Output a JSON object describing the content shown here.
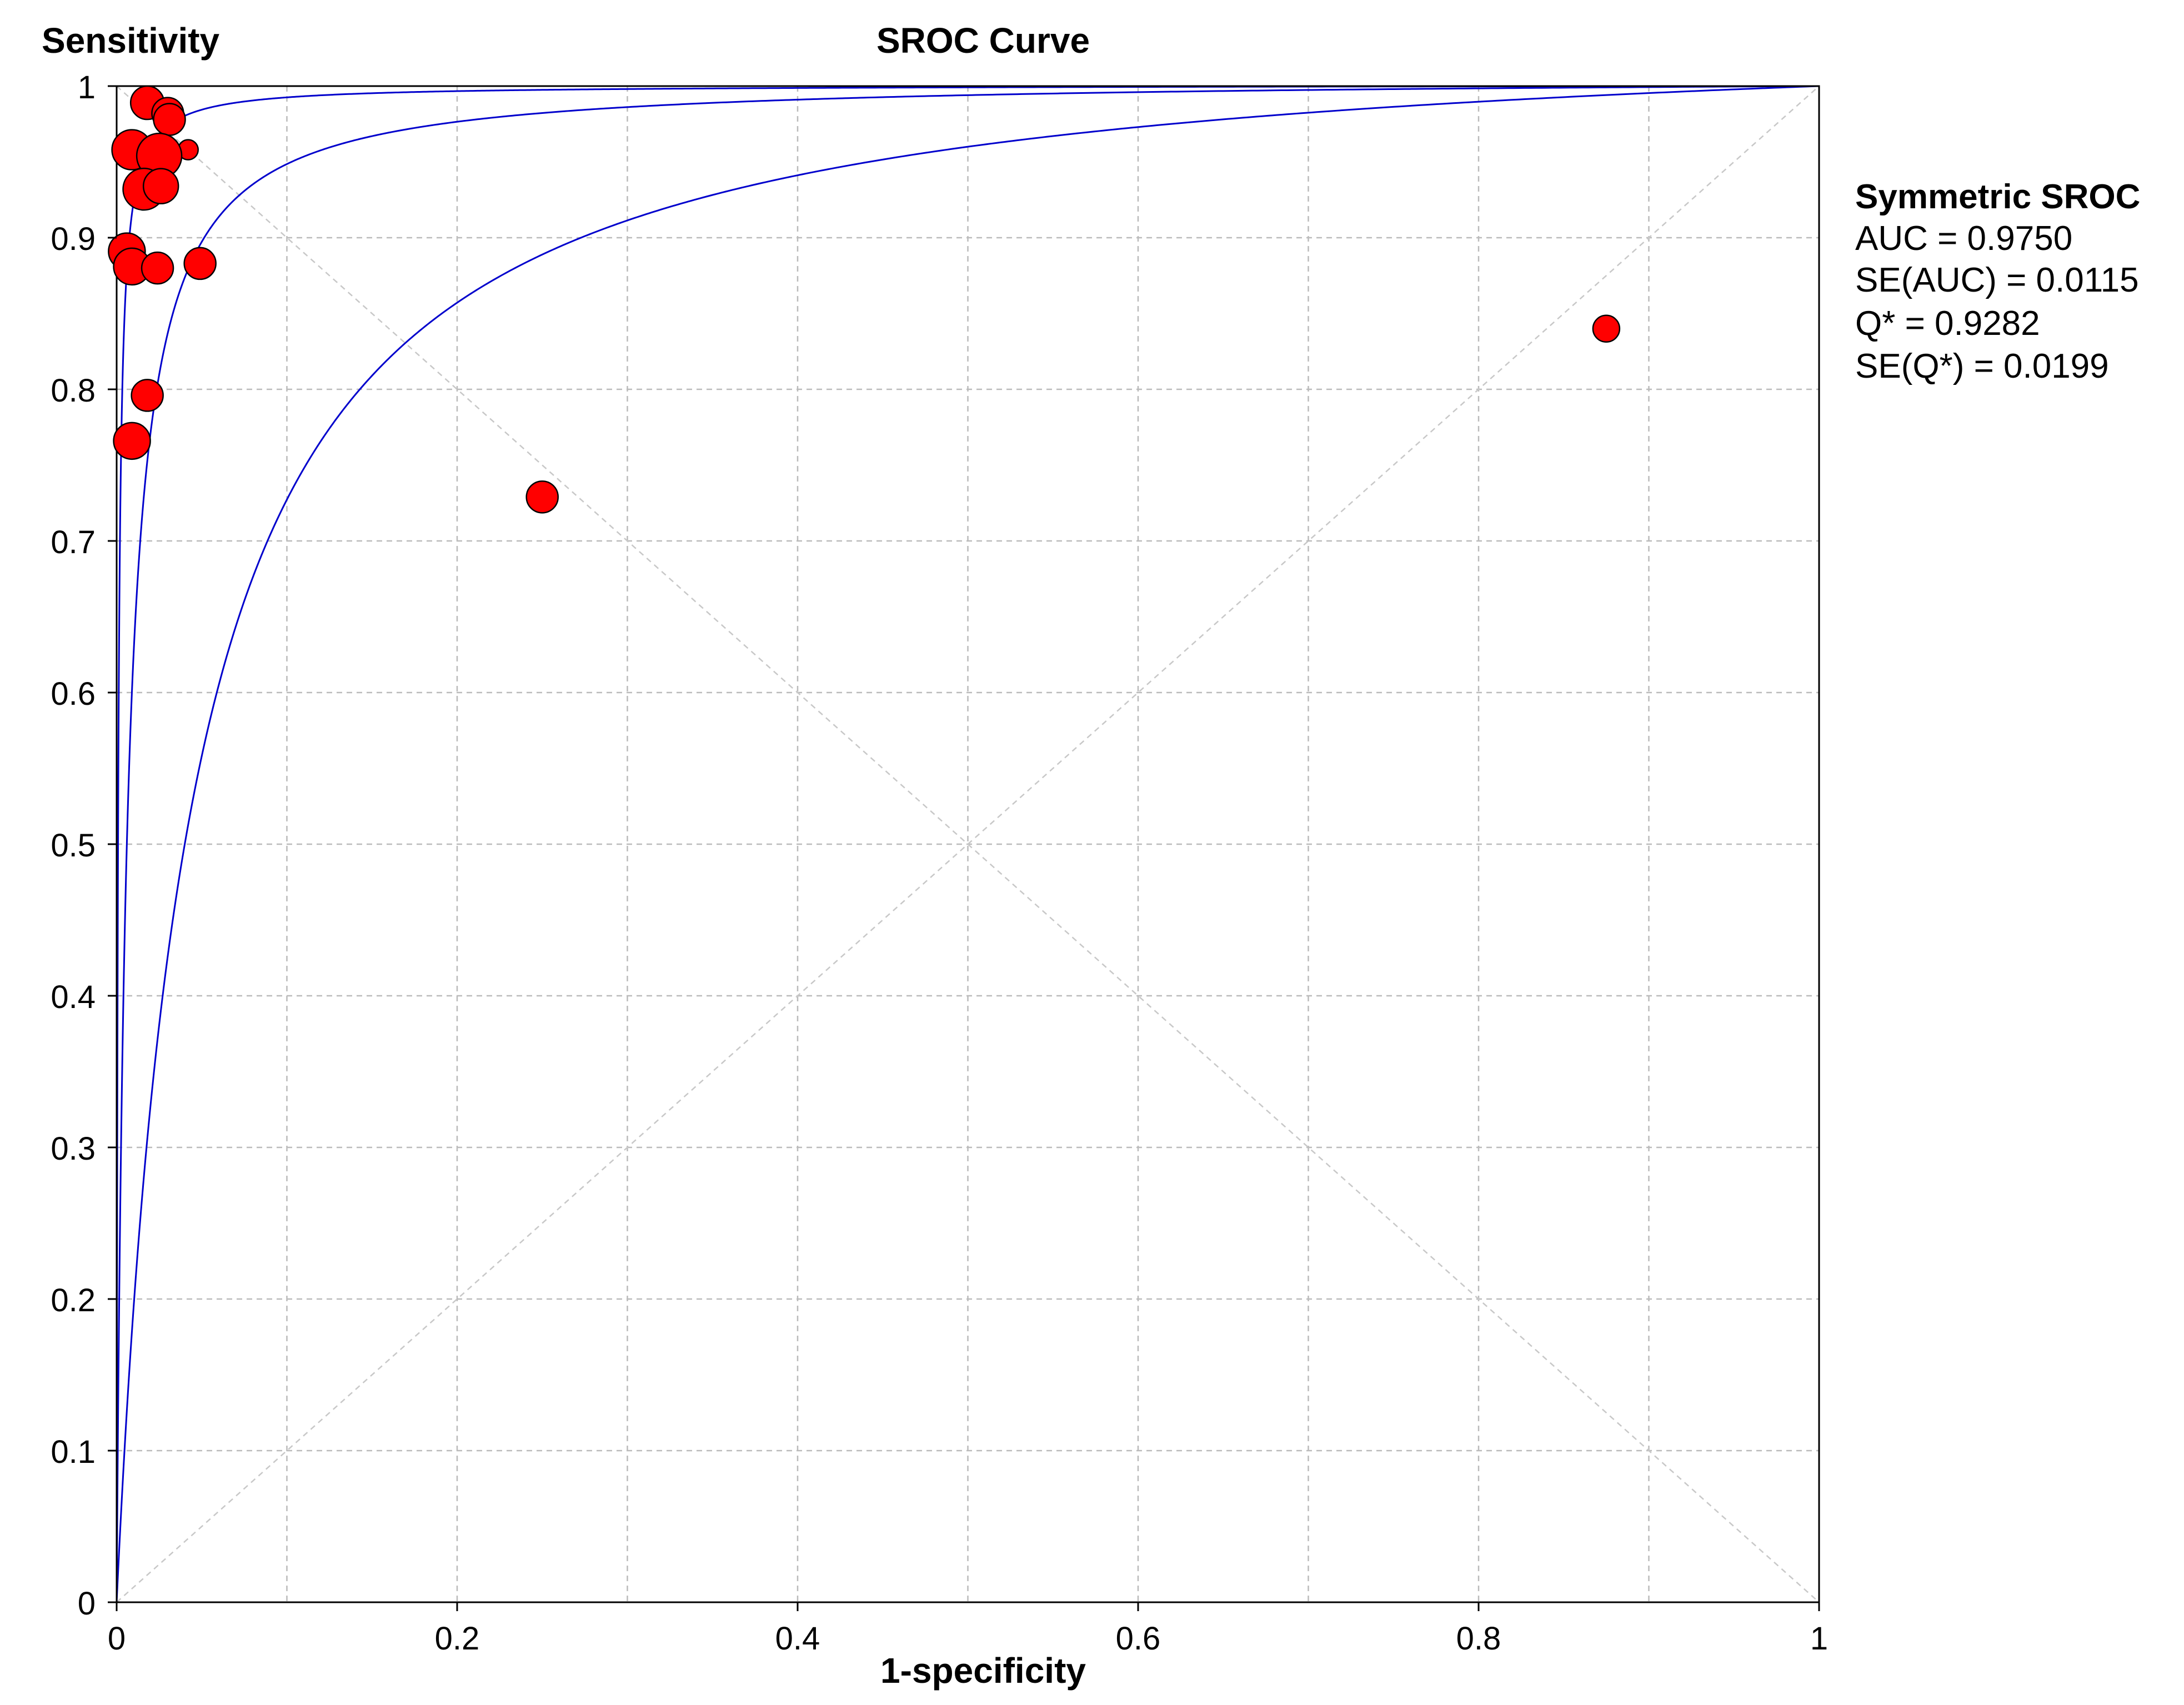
{
  "chart_data": {
    "type": "scatter",
    "title": "SROC Curve",
    "xlabel": "1-specificity",
    "ylabel": "Sensitivity",
    "xlim": [
      0,
      1
    ],
    "ylim": [
      0,
      1
    ],
    "x_ticks": [
      "0",
      "0.2",
      "0.4",
      "0.6",
      "0.8",
      "1"
    ],
    "y_ticks": [
      "0",
      "0.1",
      "0.2",
      "0.3",
      "0.4",
      "0.5",
      "0.6",
      "0.7",
      "0.8",
      "0.9",
      "1"
    ],
    "grid": true,
    "grid_step": 0.1,
    "colors": {
      "curve": "#0000cc",
      "points": "#ff0000",
      "point_outline": "#000000",
      "grid": "#bbbbbb",
      "diagonals": "#c8c8c8"
    },
    "curve": {
      "name": "Symmetric SROC",
      "odds_ratio": 166,
      "confidence_band_odds_ratios": [
        24,
        1200
      ]
    },
    "points": [
      {
        "x": 0.018,
        "y": 0.989,
        "size": 1.0
      },
      {
        "x": 0.03,
        "y": 0.982,
        "size": 0.95
      },
      {
        "x": 0.031,
        "y": 0.978,
        "size": 0.95
      },
      {
        "x": 0.042,
        "y": 0.958,
        "size": 0.6
      },
      {
        "x": 0.009,
        "y": 0.958,
        "size": 1.2
      },
      {
        "x": 0.025,
        "y": 0.954,
        "size": 1.35
      },
      {
        "x": 0.016,
        "y": 0.932,
        "size": 1.25
      },
      {
        "x": 0.026,
        "y": 0.934,
        "size": 1.05
      },
      {
        "x": 0.006,
        "y": 0.891,
        "size": 1.1
      },
      {
        "x": 0.009,
        "y": 0.881,
        "size": 1.1
      },
      {
        "x": 0.024,
        "y": 0.88,
        "size": 0.95
      },
      {
        "x": 0.049,
        "y": 0.883,
        "size": 0.95
      },
      {
        "x": 0.018,
        "y": 0.796,
        "size": 0.95
      },
      {
        "x": 0.009,
        "y": 0.766,
        "size": 1.1
      },
      {
        "x": 0.25,
        "y": 0.729,
        "size": 0.95
      },
      {
        "x": 0.875,
        "y": 0.84,
        "size": 0.8
      }
    ],
    "stats": {
      "heading": "Symmetric SROC",
      "lines": [
        "AUC = 0.9750",
        "SE(AUC) = 0.0115",
        "Q* = 0.9282",
        "SE(Q*) = 0.0199"
      ]
    }
  }
}
